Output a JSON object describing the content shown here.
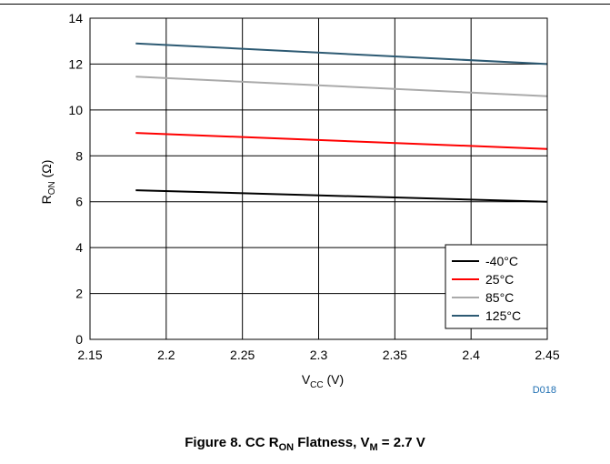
{
  "chart_data": {
    "type": "line",
    "title": "",
    "xlabel": "V",
    "xlabel_sub": "CC",
    "xlabel_unit": "(V)",
    "ylabel": "R",
    "ylabel_sub": "ON",
    "ylabel_unit": "(Ω)",
    "xlim": [
      2.15,
      2.45
    ],
    "ylim": [
      0,
      14
    ],
    "xticks": [
      "2.15",
      "2.2",
      "2.25",
      "2.3",
      "2.35",
      "2.4",
      "2.45"
    ],
    "yticks": [
      "0",
      "2",
      "4",
      "6",
      "8",
      "10",
      "12",
      "14"
    ],
    "grid": true,
    "legend_position": "bottom-right",
    "series": [
      {
        "name": "-40°C",
        "color": "#000000",
        "x": [
          2.18,
          2.45
        ],
        "y": [
          6.5,
          6.0
        ]
      },
      {
        "name": "25°C",
        "color": "#ff0000",
        "x": [
          2.18,
          2.45
        ],
        "y": [
          9.0,
          8.3
        ]
      },
      {
        "name": "85°C",
        "color": "#aaaaaa",
        "x": [
          2.18,
          2.45
        ],
        "y": [
          11.45,
          10.6
        ]
      },
      {
        "name": "125°C",
        "color": "#2d5a73",
        "x": [
          2.18,
          2.45
        ],
        "y": [
          12.9,
          12.0
        ]
      }
    ],
    "figure_code": "D018"
  },
  "caption": {
    "prefix": "Figure 8. CC R",
    "sub1": "ON",
    "middle": " Flatness, V",
    "sub2": "M",
    "suffix": " = 2.7 V"
  }
}
